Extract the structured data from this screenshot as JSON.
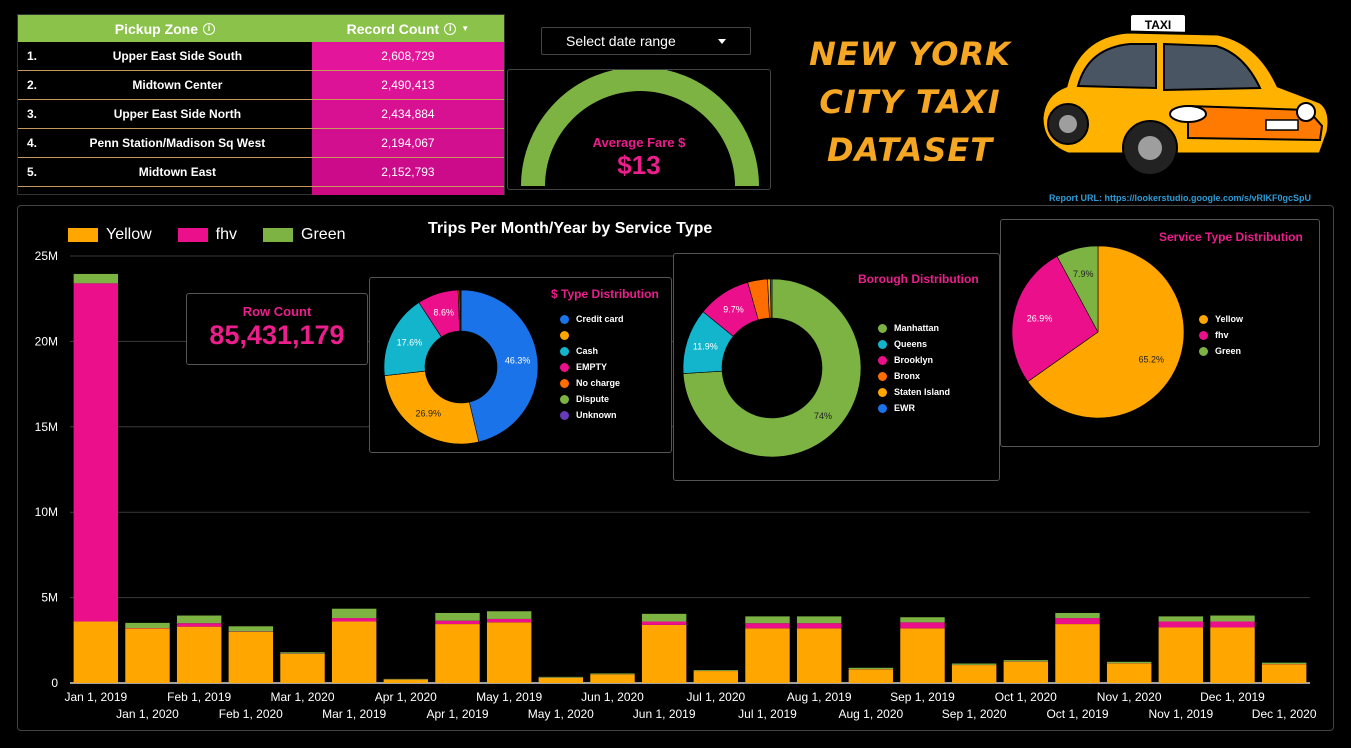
{
  "zone_table": {
    "header_zone": "Pickup Zone",
    "header_count": "Record Count",
    "rows": [
      {
        "rank": "1.",
        "zone": "Upper East Side South",
        "count": "2,608,729"
      },
      {
        "rank": "2.",
        "zone": "Midtown Center",
        "count": "2,490,413"
      },
      {
        "rank": "3.",
        "zone": "Upper East Side North",
        "count": "2,434,884"
      },
      {
        "rank": "4.",
        "zone": "Penn Station/Madison Sq West",
        "count": "2,194,067"
      },
      {
        "rank": "5.",
        "zone": "Midtown East",
        "count": "2,152,793"
      }
    ],
    "count_shades": [
      "#e3169b",
      "#dc1396",
      "#d81192",
      "#d20f8e",
      "#cc0b8a"
    ]
  },
  "date_picker": {
    "label": "Select date range"
  },
  "gauge": {
    "label": "Average Fare $",
    "value": "$13",
    "fill_fraction": 1.0,
    "color": "#7cb342"
  },
  "hero": {
    "line1": "NEW YORK",
    "line2": "CITY TAXI",
    "line3": "DATASET",
    "report_url": "Report URL: https://lookerstudio.google.com/s/vRIKF0gcSpU"
  },
  "colors": {
    "yellow": "#ffa700",
    "fhv": "#ec0f8c",
    "green": "#7cb342",
    "accent": "#ec1e8c"
  },
  "row_count": {
    "label": "Row Count",
    "value": "85,431,179"
  },
  "chart_data": [
    {
      "type": "bar",
      "stacked": true,
      "title": "Trips Per Month/Year by Service Type",
      "ylim": [
        0,
        25000000
      ],
      "ytick_labels": [
        "0",
        "5M",
        "10M",
        "15M",
        "20M",
        "25M"
      ],
      "yticks": [
        0,
        5000000,
        10000000,
        15000000,
        20000000,
        25000000
      ],
      "grid": true,
      "legend_position": "top-left",
      "categories": [
        "Jan 1, 2019",
        "Jan 1, 2020",
        "Feb 1, 2019",
        "Feb 1, 2020",
        "Mar 1, 2020",
        "Mar 1, 2019",
        "Apr 1, 2020",
        "Apr 1, 2019",
        "May 1, 2019",
        "May 1, 2020",
        "Jun 1, 2020",
        "Jun 1, 2019",
        "Jul 1, 2020",
        "Jul 1, 2019",
        "Aug 1, 2019",
        "Aug 1, 2020",
        "Sep 1, 2019",
        "Sep 1, 2020",
        "Oct 1, 2020",
        "Oct 1, 2019",
        "Nov 1, 2020",
        "Nov 1, 2019",
        "Dec 1, 2019",
        "Dec 1, 2020"
      ],
      "series": [
        {
          "name": "Yellow",
          "color": "#ffa700",
          "values": [
            3600000,
            3200000,
            3300000,
            3000000,
            1700000,
            3600000,
            200000,
            3450000,
            3550000,
            300000,
            500000,
            3400000,
            700000,
            3200000,
            3200000,
            800000,
            3200000,
            1050000,
            1250000,
            3450000,
            1150000,
            3250000,
            3250000,
            1100000
          ]
        },
        {
          "name": "fhv",
          "color": "#ec0f8c",
          "values": [
            19800000,
            20000,
            200000,
            20000,
            20000,
            200000,
            10000,
            200000,
            200000,
            10000,
            10000,
            200000,
            10000,
            300000,
            300000,
            10000,
            350000,
            10000,
            10000,
            350000,
            10000,
            350000,
            350000,
            10000
          ]
        },
        {
          "name": "Green",
          "color": "#7cb342",
          "values": [
            550000,
            300000,
            450000,
            300000,
            80000,
            550000,
            30000,
            450000,
            450000,
            50000,
            50000,
            450000,
            50000,
            400000,
            400000,
            80000,
            300000,
            80000,
            80000,
            300000,
            80000,
            300000,
            350000,
            80000
          ]
        }
      ]
    },
    {
      "type": "pie",
      "donut": true,
      "title": "$ Type Distribution",
      "categories": [
        "Credit card",
        "",
        "Cash",
        "EMPTY",
        "No charge",
        "Dispute",
        "Unknown"
      ],
      "values": [
        46.3,
        26.9,
        17.6,
        8.6,
        0.3,
        0.2,
        0.1
      ],
      "labels": [
        "46.3%",
        "26.9%",
        "17.6%",
        "8.6%",
        "",
        "",
        ""
      ],
      "colors": [
        "#1a73e8",
        "#ffa700",
        "#12b5cb",
        "#ec0f8c",
        "#ff6d00",
        "#7cb342",
        "#673ab7"
      ]
    },
    {
      "type": "pie",
      "donut": true,
      "title": "Borough Distribution",
      "categories": [
        "Manhattan",
        "Queens",
        "Brooklyn",
        "Bronx",
        "Staten Island",
        "EWR"
      ],
      "values": [
        74,
        11.9,
        9.7,
        3.6,
        0.5,
        0.3
      ],
      "labels": [
        "74%",
        "11.9%",
        "9.7%",
        "",
        "",
        ""
      ],
      "colors": [
        "#7cb342",
        "#12b5cb",
        "#ec0f8c",
        "#ff6d00",
        "#ffa700",
        "#1a73e8"
      ]
    },
    {
      "type": "pie",
      "donut": false,
      "title": "Service Type Distribution",
      "categories": [
        "Yellow",
        "fhv",
        "Green"
      ],
      "values": [
        65.2,
        26.9,
        7.9
      ],
      "labels": [
        "65.2%",
        "26.9%",
        "7.9%"
      ],
      "colors": [
        "#ffa700",
        "#ec0f8c",
        "#7cb342"
      ]
    }
  ]
}
